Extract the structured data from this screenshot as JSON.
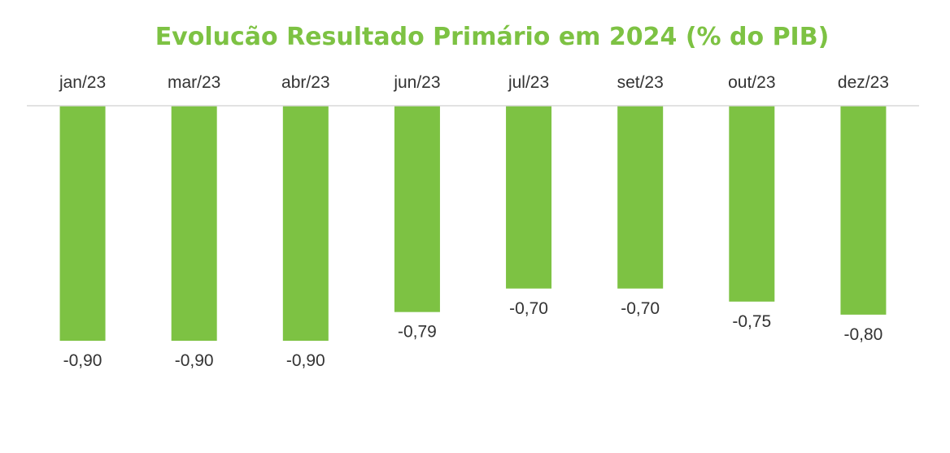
{
  "chart_data": {
    "type": "bar",
    "title": "Evolucão Resultado Primário em 2024 (% do PIB)",
    "categories": [
      "jan/23",
      "mar/23",
      "abr/23",
      "jun/23",
      "jul/23",
      "set/23",
      "out/23",
      "dez/23"
    ],
    "values": [
      -0.9,
      -0.9,
      -0.9,
      -0.79,
      -0.7,
      -0.7,
      -0.75,
      -0.8
    ],
    "value_labels": [
      "-0,90",
      "-0,90",
      "-0,90",
      "-0,79",
      "-0,70",
      "-0,70",
      "-0,75",
      "-0,80"
    ],
    "xlabel": "",
    "ylabel": "",
    "ylim": [
      -0.9,
      0
    ],
    "grid": false,
    "legend": "none",
    "category_axis_position": "top",
    "bar_color": "#7dc243",
    "axis_color": "#d9d9d9"
  }
}
